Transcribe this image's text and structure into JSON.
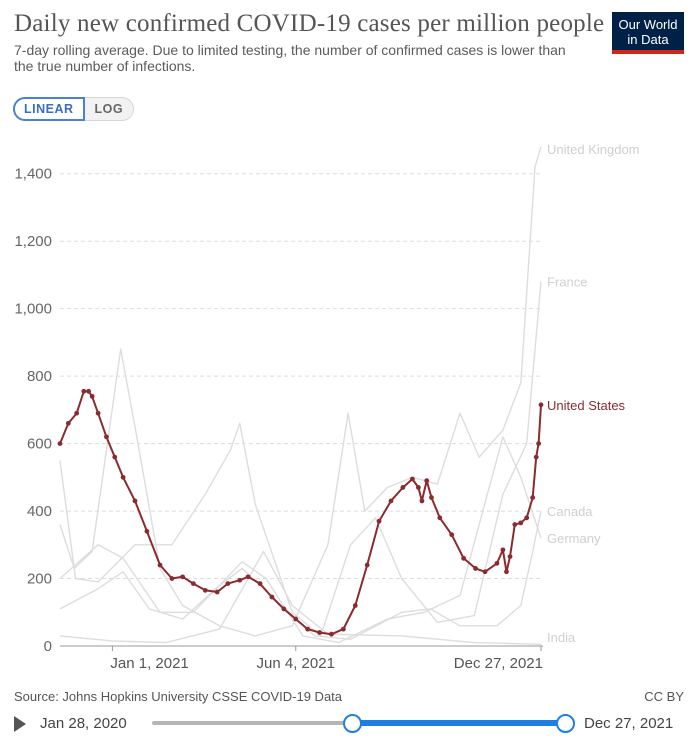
{
  "header": {
    "title": "Daily new confirmed COVID-19 cases per million people",
    "subtitle": "7-day rolling average. Due to limited testing, the number of confirmed cases is lower than the true number of infections.",
    "logo_line1": "Our World",
    "logo_line2": "in Data"
  },
  "controls": {
    "linear_label": "LINEAR",
    "log_label": "LOG",
    "active_scale": "linear"
  },
  "footer": {
    "source": "Source: Johns Hopkins University CSSE COVID-19 Data",
    "license": "CC BY"
  },
  "timeline": {
    "start_label": "Jan 28, 2020",
    "end_label": "Dec 27, 2021",
    "selected_start": "Nov 18, 2020",
    "selected_end": "Dec 27, 2021"
  },
  "colors": {
    "highlight": "#8b2a2f",
    "muted": "#dddddd",
    "muted_label": "#cfcfcf",
    "grid": "#dddddd",
    "accent": "#1f7fe0"
  },
  "chart_data": {
    "type": "line",
    "x_start": "2020-11-18",
    "x_end": "2021-12-27",
    "xticks": [
      {
        "date": "2021-01-01",
        "label": "Jan 1, 2021"
      },
      {
        "date": "2021-06-04",
        "label": "Jun 4, 2021"
      },
      {
        "date": "2021-12-27",
        "label": "Dec 27, 2021"
      }
    ],
    "ylim": [
      0,
      1500
    ],
    "yticks": [
      0,
      200,
      400,
      600,
      800,
      1000,
      1200,
      1400
    ],
    "ytick_labels": [
      "0",
      "200",
      "400",
      "600",
      "800",
      "1,000",
      "1,200",
      "1,400"
    ],
    "grid": true,
    "legend_position": "right",
    "series": [
      {
        "name": "United States",
        "highlight": true,
        "points": [
          [
            "2020-11-18",
            600
          ],
          [
            "2020-11-25",
            660
          ],
          [
            "2020-12-02",
            690
          ],
          [
            "2020-12-08",
            755
          ],
          [
            "2020-12-12",
            755
          ],
          [
            "2020-12-15",
            740
          ],
          [
            "2020-12-20",
            690
          ],
          [
            "2020-12-27",
            620
          ],
          [
            "2021-01-03",
            560
          ],
          [
            "2021-01-10",
            500
          ],
          [
            "2021-01-20",
            430
          ],
          [
            "2021-01-30",
            340
          ],
          [
            "2021-02-10",
            240
          ],
          [
            "2021-02-20",
            200
          ],
          [
            "2021-03-01",
            205
          ],
          [
            "2021-03-10",
            185
          ],
          [
            "2021-03-20",
            165
          ],
          [
            "2021-03-30",
            160
          ],
          [
            "2021-04-08",
            185
          ],
          [
            "2021-04-18",
            195
          ],
          [
            "2021-04-25",
            205
          ],
          [
            "2021-05-05",
            185
          ],
          [
            "2021-05-15",
            145
          ],
          [
            "2021-05-25",
            110
          ],
          [
            "2021-06-04",
            80
          ],
          [
            "2021-06-14",
            50
          ],
          [
            "2021-06-24",
            40
          ],
          [
            "2021-07-04",
            35
          ],
          [
            "2021-07-14",
            50
          ],
          [
            "2021-07-24",
            120
          ],
          [
            "2021-08-03",
            240
          ],
          [
            "2021-08-13",
            370
          ],
          [
            "2021-08-23",
            430
          ],
          [
            "2021-09-02",
            470
          ],
          [
            "2021-09-10",
            495
          ],
          [
            "2021-09-15",
            470
          ],
          [
            "2021-09-18",
            430
          ],
          [
            "2021-09-22",
            490
          ],
          [
            "2021-09-26",
            440
          ],
          [
            "2021-10-03",
            380
          ],
          [
            "2021-10-13",
            330
          ],
          [
            "2021-10-23",
            260
          ],
          [
            "2021-11-02",
            230
          ],
          [
            "2021-11-10",
            220
          ],
          [
            "2021-11-20",
            245
          ],
          [
            "2021-11-25",
            285
          ],
          [
            "2021-11-28",
            220
          ],
          [
            "2021-12-01",
            265
          ],
          [
            "2021-12-05",
            360
          ],
          [
            "2021-12-10",
            365
          ],
          [
            "2021-12-15",
            380
          ],
          [
            "2021-12-20",
            440
          ],
          [
            "2021-12-23",
            560
          ],
          [
            "2021-12-25",
            600
          ],
          [
            "2021-12-27",
            715
          ]
        ]
      },
      {
        "name": "United Kingdom",
        "highlight": false,
        "points": [
          [
            "2020-11-18",
            360
          ],
          [
            "2020-11-30",
            230
          ],
          [
            "2020-12-15",
            280
          ],
          [
            "2021-01-08",
            880
          ],
          [
            "2021-01-20",
            650
          ],
          [
            "2021-02-10",
            230
          ],
          [
            "2021-03-01",
            120
          ],
          [
            "2021-04-01",
            60
          ],
          [
            "2021-05-01",
            30
          ],
          [
            "2021-06-01",
            60
          ],
          [
            "2021-07-01",
            300
          ],
          [
            "2021-07-18",
            690
          ],
          [
            "2021-08-01",
            400
          ],
          [
            "2021-08-20",
            470
          ],
          [
            "2021-09-10",
            500
          ],
          [
            "2021-10-01",
            480
          ],
          [
            "2021-10-20",
            690
          ],
          [
            "2021-11-05",
            560
          ],
          [
            "2021-11-25",
            640
          ],
          [
            "2021-12-10",
            780
          ],
          [
            "2021-12-22",
            1420
          ],
          [
            "2021-12-27",
            1480
          ]
        ]
      },
      {
        "name": "France",
        "highlight": false,
        "points": [
          [
            "2020-11-18",
            550
          ],
          [
            "2020-12-01",
            200
          ],
          [
            "2020-12-20",
            190
          ],
          [
            "2021-01-20",
            300
          ],
          [
            "2021-02-20",
            300
          ],
          [
            "2021-03-20",
            450
          ],
          [
            "2021-04-10",
            580
          ],
          [
            "2021-04-18",
            660
          ],
          [
            "2021-05-01",
            420
          ],
          [
            "2021-06-01",
            100
          ],
          [
            "2021-06-25",
            30
          ],
          [
            "2021-07-20",
            300
          ],
          [
            "2021-08-10",
            380
          ],
          [
            "2021-09-01",
            200
          ],
          [
            "2021-10-01",
            70
          ],
          [
            "2021-11-01",
            90
          ],
          [
            "2021-11-25",
            450
          ],
          [
            "2021-12-15",
            600
          ],
          [
            "2021-12-27",
            1080
          ]
        ]
      },
      {
        "name": "Canada",
        "highlight": false,
        "points": [
          [
            "2020-11-18",
            110
          ],
          [
            "2020-12-20",
            170
          ],
          [
            "2021-01-10",
            220
          ],
          [
            "2021-02-01",
            110
          ],
          [
            "2021-03-01",
            80
          ],
          [
            "2021-04-01",
            180
          ],
          [
            "2021-04-20",
            230
          ],
          [
            "2021-05-20",
            130
          ],
          [
            "2021-06-20",
            30
          ],
          [
            "2021-07-20",
            20
          ],
          [
            "2021-09-01",
            100
          ],
          [
            "2021-09-25",
            110
          ],
          [
            "2021-10-20",
            60
          ],
          [
            "2021-11-20",
            60
          ],
          [
            "2021-12-10",
            120
          ],
          [
            "2021-12-20",
            280
          ],
          [
            "2021-12-27",
            400
          ]
        ]
      },
      {
        "name": "Germany",
        "highlight": false,
        "points": [
          [
            "2020-11-18",
            200
          ],
          [
            "2020-12-20",
            300
          ],
          [
            "2021-01-10",
            260
          ],
          [
            "2021-02-10",
            100
          ],
          [
            "2021-03-10",
            100
          ],
          [
            "2021-04-20",
            250
          ],
          [
            "2021-05-10",
            200
          ],
          [
            "2021-06-10",
            30
          ],
          [
            "2021-07-10",
            10
          ],
          [
            "2021-08-20",
            80
          ],
          [
            "2021-09-20",
            100
          ],
          [
            "2021-10-20",
            150
          ],
          [
            "2021-11-25",
            620
          ],
          [
            "2021-12-10",
            500
          ],
          [
            "2021-12-27",
            320
          ]
        ]
      },
      {
        "name": "India",
        "highlight": false,
        "points": [
          [
            "2020-11-18",
            30
          ],
          [
            "2021-01-01",
            15
          ],
          [
            "2021-02-15",
            10
          ],
          [
            "2021-04-01",
            50
          ],
          [
            "2021-05-08",
            280
          ],
          [
            "2021-06-01",
            120
          ],
          [
            "2021-07-01",
            35
          ],
          [
            "2021-09-01",
            30
          ],
          [
            "2021-11-01",
            10
          ],
          [
            "2021-12-27",
            5
          ]
        ]
      }
    ]
  }
}
